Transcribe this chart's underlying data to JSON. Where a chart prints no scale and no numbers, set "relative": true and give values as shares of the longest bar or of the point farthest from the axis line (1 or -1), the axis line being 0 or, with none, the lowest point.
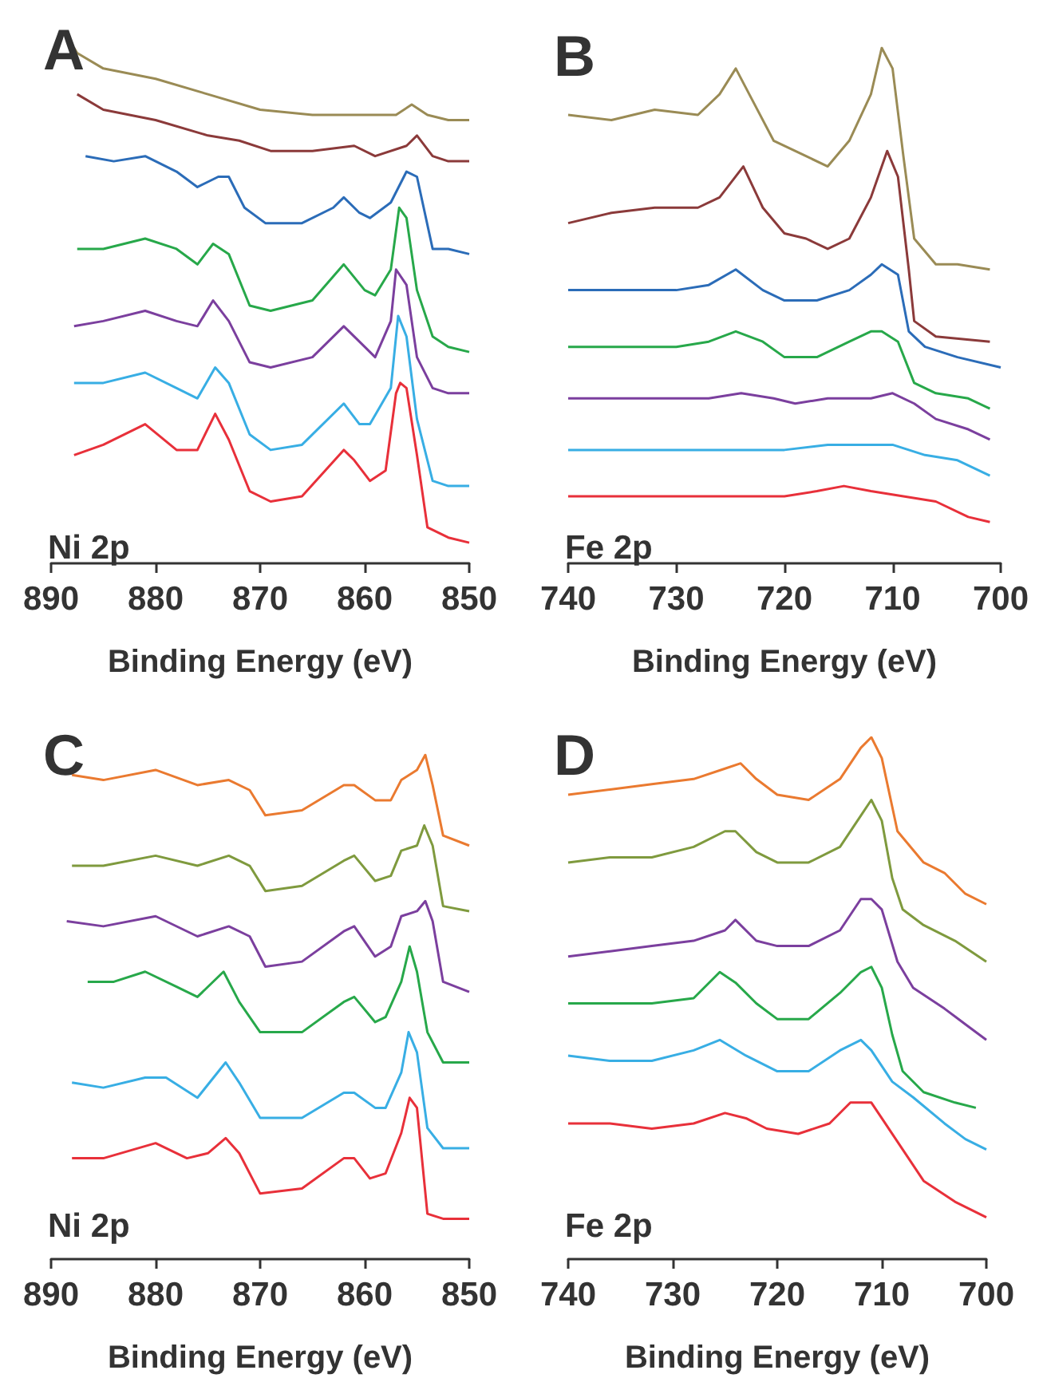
{
  "chart_data": [
    {
      "type": "line",
      "title": "A",
      "xlabel": "Binding Energy (eV)",
      "annotations": [
        "Ni 2p"
      ],
      "relative": true,
      "xlim": [
        890,
        850
      ],
      "xticks": [
        890,
        880,
        870,
        860,
        850
      ],
      "grid": false,
      "series": [
        {
          "color": "#9a8b55",
          "x": [
            887.8,
            887.5,
            885,
            880,
            875,
            870,
            865,
            860,
            857,
            855.5,
            854,
            852,
            850
          ],
          "values": [
            1.0,
            0.99,
            0.96,
            0.94,
            0.91,
            0.88,
            0.87,
            0.87,
            0.87,
            0.89,
            0.87,
            0.86,
            0.86
          ]
        },
        {
          "color": "#8b3a3a",
          "x": [
            887.5,
            885,
            880,
            875,
            872,
            869,
            865,
            861,
            859,
            856,
            855,
            853.5,
            852,
            850
          ],
          "values": [
            0.91,
            0.88,
            0.86,
            0.83,
            0.82,
            0.8,
            0.8,
            0.81,
            0.79,
            0.81,
            0.83,
            0.79,
            0.78,
            0.78
          ]
        },
        {
          "color": "#2b6cb8",
          "x": [
            886.7,
            884,
            881,
            878,
            876,
            874,
            873,
            871.5,
            869.5,
            866,
            863,
            862,
            860.5,
            859.5,
            857.5,
            856,
            855,
            853.5,
            852,
            850
          ],
          "values": [
            0.79,
            0.78,
            0.79,
            0.76,
            0.73,
            0.75,
            0.75,
            0.69,
            0.66,
            0.66,
            0.69,
            0.71,
            0.68,
            0.67,
            0.7,
            0.76,
            0.75,
            0.61,
            0.61,
            0.6
          ]
        },
        {
          "color": "#27a84a",
          "x": [
            887.5,
            885,
            881,
            878,
            876,
            874.5,
            873,
            871,
            869,
            865,
            862,
            860,
            859,
            857.5,
            856.7,
            856,
            855,
            853.5,
            852,
            850
          ],
          "values": [
            0.61,
            0.61,
            0.63,
            0.61,
            0.58,
            0.62,
            0.6,
            0.5,
            0.49,
            0.51,
            0.58,
            0.53,
            0.52,
            0.57,
            0.69,
            0.67,
            0.53,
            0.44,
            0.42,
            0.41
          ]
        },
        {
          "color": "#7b3f9e",
          "x": [
            887.8,
            885,
            881,
            878,
            876,
            874.5,
            873,
            871,
            869,
            865,
            862,
            860,
            859,
            857.5,
            857,
            856,
            855,
            853.5,
            852,
            850
          ],
          "values": [
            0.46,
            0.47,
            0.49,
            0.47,
            0.46,
            0.51,
            0.47,
            0.39,
            0.38,
            0.4,
            0.46,
            0.42,
            0.4,
            0.47,
            0.57,
            0.54,
            0.4,
            0.34,
            0.33,
            0.33
          ]
        },
        {
          "color": "#38aee4",
          "x": [
            887.8,
            885,
            881,
            878,
            876,
            874.3,
            873,
            871,
            869,
            866,
            862,
            860.5,
            859.5,
            857.5,
            856.8,
            856,
            855,
            853.5,
            852,
            850
          ],
          "values": [
            0.35,
            0.35,
            0.37,
            0.34,
            0.32,
            0.38,
            0.35,
            0.25,
            0.22,
            0.23,
            0.31,
            0.27,
            0.27,
            0.34,
            0.48,
            0.44,
            0.28,
            0.16,
            0.15,
            0.15
          ]
        },
        {
          "color": "#e8303a",
          "x": [
            887.8,
            885,
            881,
            878,
            876,
            874.3,
            873,
            871,
            869,
            866,
            862,
            861,
            859.5,
            858,
            857,
            856.6,
            856,
            855,
            854,
            852,
            850
          ],
          "values": [
            0.21,
            0.23,
            0.27,
            0.22,
            0.22,
            0.29,
            0.24,
            0.14,
            0.12,
            0.13,
            0.22,
            0.2,
            0.16,
            0.18,
            0.33,
            0.35,
            0.34,
            0.21,
            0.07,
            0.05,
            0.04
          ]
        }
      ]
    },
    {
      "type": "line",
      "title": "B",
      "xlabel": "Binding Energy (eV)",
      "annotations": [
        "Fe 2p"
      ],
      "relative": true,
      "xlim": [
        740,
        700
      ],
      "xticks": [
        740,
        730,
        720,
        710,
        700
      ],
      "grid": false,
      "series": [
        {
          "color": "#9a8b55",
          "x": [
            740,
            736,
            732,
            728,
            726,
            724.5,
            723,
            721,
            718,
            716,
            714,
            712,
            711,
            710,
            709,
            708,
            706,
            704,
            701
          ],
          "values": [
            0.87,
            0.86,
            0.88,
            0.87,
            0.91,
            0.96,
            0.9,
            0.82,
            0.79,
            0.77,
            0.82,
            0.91,
            1.0,
            0.96,
            0.79,
            0.63,
            0.58,
            0.58,
            0.57
          ]
        },
        {
          "color": "#8b3a3a",
          "x": [
            740,
            736,
            732,
            728,
            726,
            723.8,
            722,
            720,
            718,
            716,
            714,
            712,
            710.5,
            709.5,
            708.5,
            708,
            706,
            701
          ],
          "values": [
            0.66,
            0.68,
            0.69,
            0.69,
            0.71,
            0.77,
            0.69,
            0.64,
            0.63,
            0.61,
            0.63,
            0.71,
            0.8,
            0.75,
            0.57,
            0.47,
            0.44,
            0.43
          ]
        },
        {
          "color": "#2b6cb8",
          "x": [
            740,
            735,
            730,
            727,
            724.5,
            722,
            720,
            717,
            714,
            712,
            711,
            709.5,
            708.5,
            707,
            704,
            700
          ],
          "values": [
            0.53,
            0.53,
            0.53,
            0.54,
            0.57,
            0.53,
            0.51,
            0.51,
            0.53,
            0.56,
            0.58,
            0.56,
            0.45,
            0.42,
            0.4,
            0.38
          ]
        },
        {
          "color": "#27a84a",
          "x": [
            740,
            735,
            730,
            727,
            724.5,
            722,
            720,
            717,
            714,
            712,
            711,
            709.5,
            708,
            706,
            703,
            701
          ],
          "values": [
            0.42,
            0.42,
            0.42,
            0.43,
            0.45,
            0.43,
            0.4,
            0.4,
            0.43,
            0.45,
            0.45,
            0.43,
            0.35,
            0.33,
            0.32,
            0.3
          ]
        },
        {
          "color": "#7b3f9e",
          "x": [
            740,
            735,
            730,
            727,
            724,
            721,
            719,
            716,
            712,
            710,
            708,
            706,
            703,
            701
          ],
          "values": [
            0.32,
            0.32,
            0.32,
            0.32,
            0.33,
            0.32,
            0.31,
            0.32,
            0.32,
            0.33,
            0.31,
            0.28,
            0.26,
            0.24
          ]
        },
        {
          "color": "#38aee4",
          "x": [
            740,
            730,
            725,
            720,
            716,
            713,
            710,
            707,
            704,
            701
          ],
          "values": [
            0.22,
            0.22,
            0.22,
            0.22,
            0.23,
            0.23,
            0.23,
            0.21,
            0.2,
            0.17
          ]
        },
        {
          "color": "#e8303a",
          "x": [
            740,
            730,
            725,
            720,
            717,
            714.5,
            712,
            709,
            706,
            703,
            701
          ],
          "values": [
            0.13,
            0.13,
            0.13,
            0.13,
            0.14,
            0.15,
            0.14,
            0.13,
            0.12,
            0.09,
            0.08
          ]
        }
      ]
    },
    {
      "type": "line",
      "title": "C",
      "xlabel": "Binding Energy (eV)",
      "annotations": [
        "Ni 2p"
      ],
      "relative": true,
      "xlim": [
        890,
        850
      ],
      "xticks": [
        890,
        880,
        870,
        860,
        850
      ],
      "grid": false,
      "series": [
        {
          "color": "#ea7a30",
          "x": [
            888,
            885,
            880,
            876,
            873,
            871,
            869.5,
            866,
            862,
            861,
            859,
            857.5,
            856.5,
            855,
            854.2,
            853.5,
            852.5,
            850
          ],
          "values": [
            0.96,
            0.95,
            0.97,
            0.94,
            0.95,
            0.93,
            0.88,
            0.89,
            0.94,
            0.94,
            0.91,
            0.91,
            0.95,
            0.97,
            1.0,
            0.94,
            0.84,
            0.82
          ]
        },
        {
          "color": "#7f9a3e",
          "x": [
            888,
            885,
            880,
            876,
            873,
            871,
            869.5,
            866,
            862,
            861,
            859,
            857.5,
            856.5,
            855,
            854.3,
            853.5,
            852.5,
            850
          ],
          "values": [
            0.78,
            0.78,
            0.8,
            0.78,
            0.8,
            0.78,
            0.73,
            0.74,
            0.79,
            0.8,
            0.75,
            0.76,
            0.81,
            0.82,
            0.86,
            0.82,
            0.7,
            0.69
          ]
        },
        {
          "color": "#7b3f9e",
          "x": [
            888.5,
            885,
            880,
            876,
            873,
            871,
            869.5,
            866,
            862,
            861,
            859,
            857.5,
            856.5,
            855,
            854.2,
            853.5,
            852.5,
            850
          ],
          "values": [
            0.67,
            0.66,
            0.68,
            0.64,
            0.66,
            0.64,
            0.58,
            0.59,
            0.65,
            0.66,
            0.6,
            0.62,
            0.68,
            0.69,
            0.71,
            0.67,
            0.55,
            0.53
          ]
        },
        {
          "color": "#27a84a",
          "x": [
            886.5,
            884,
            881,
            878,
            876,
            873.5,
            872,
            870,
            866,
            862,
            861,
            859,
            858,
            856.5,
            855.7,
            855,
            854,
            852.5,
            850
          ],
          "values": [
            0.55,
            0.55,
            0.57,
            0.54,
            0.52,
            0.57,
            0.51,
            0.45,
            0.45,
            0.51,
            0.52,
            0.47,
            0.48,
            0.55,
            0.62,
            0.57,
            0.45,
            0.39,
            0.39
          ]
        },
        {
          "color": "#38aee4",
          "x": [
            888,
            885,
            881,
            879,
            876,
            873.3,
            872,
            870,
            866,
            862,
            861,
            859,
            858,
            856.5,
            855.8,
            855,
            854,
            852.5,
            850
          ],
          "values": [
            0.35,
            0.34,
            0.36,
            0.36,
            0.32,
            0.39,
            0.35,
            0.28,
            0.28,
            0.33,
            0.33,
            0.3,
            0.3,
            0.37,
            0.45,
            0.41,
            0.26,
            0.22,
            0.22
          ]
        },
        {
          "color": "#e8303a",
          "x": [
            888,
            885,
            880,
            877,
            875,
            873.3,
            872,
            870,
            866,
            862,
            861,
            859.5,
            858,
            856.5,
            855.7,
            855,
            854,
            852.5,
            850
          ],
          "values": [
            0.2,
            0.2,
            0.23,
            0.2,
            0.21,
            0.24,
            0.21,
            0.13,
            0.14,
            0.2,
            0.2,
            0.16,
            0.17,
            0.25,
            0.32,
            0.3,
            0.09,
            0.08,
            0.08
          ]
        }
      ]
    },
    {
      "type": "line",
      "title": "D",
      "xlabel": "Binding Energy (eV)",
      "annotations": [
        "Fe 2p"
      ],
      "relative": true,
      "xlim": [
        740,
        700
      ],
      "xticks": [
        740,
        730,
        720,
        710,
        700
      ],
      "grid": false,
      "series": [
        {
          "color": "#ea7a30",
          "x": [
            740,
            736,
            732,
            728,
            725,
            723.5,
            722,
            720,
            717,
            714,
            712,
            711,
            710,
            708.5,
            706,
            704,
            702,
            700
          ],
          "values": [
            0.89,
            0.9,
            0.91,
            0.92,
            0.94,
            0.95,
            0.92,
            0.89,
            0.88,
            0.92,
            0.98,
            1.0,
            0.96,
            0.82,
            0.76,
            0.74,
            0.7,
            0.68
          ]
        },
        {
          "color": "#7f9a3e",
          "x": [
            740,
            736,
            732,
            728,
            725,
            724,
            722,
            720,
            717,
            714,
            712,
            711,
            710,
            709,
            708,
            706,
            703,
            700
          ],
          "values": [
            0.76,
            0.77,
            0.77,
            0.79,
            0.82,
            0.82,
            0.78,
            0.76,
            0.76,
            0.79,
            0.85,
            0.88,
            0.84,
            0.73,
            0.67,
            0.64,
            0.61,
            0.57
          ]
        },
        {
          "color": "#7b3f9e",
          "x": [
            740,
            736,
            732,
            728,
            725,
            724,
            722,
            720,
            717,
            714,
            712,
            711,
            710,
            708.5,
            707,
            704,
            702,
            700
          ],
          "values": [
            0.58,
            0.59,
            0.6,
            0.61,
            0.63,
            0.65,
            0.61,
            0.6,
            0.6,
            0.63,
            0.69,
            0.69,
            0.67,
            0.57,
            0.52,
            0.48,
            0.45,
            0.42
          ]
        },
        {
          "color": "#27a84a",
          "x": [
            740,
            736,
            732,
            728,
            725.5,
            724,
            722,
            720,
            717,
            714,
            712,
            711,
            710,
            709,
            708,
            706,
            703,
            701
          ],
          "values": [
            0.49,
            0.49,
            0.49,
            0.5,
            0.55,
            0.53,
            0.49,
            0.46,
            0.46,
            0.51,
            0.55,
            0.56,
            0.52,
            0.43,
            0.36,
            0.32,
            0.3,
            0.29
          ]
        },
        {
          "color": "#38aee4",
          "x": [
            740,
            736,
            732,
            728,
            725.5,
            723,
            720,
            717,
            714,
            712,
            711,
            709,
            707,
            704,
            702,
            700
          ],
          "values": [
            0.39,
            0.38,
            0.38,
            0.4,
            0.42,
            0.39,
            0.36,
            0.36,
            0.4,
            0.42,
            0.4,
            0.34,
            0.31,
            0.26,
            0.23,
            0.21
          ]
        },
        {
          "color": "#e8303a",
          "x": [
            740,
            736,
            732,
            728,
            725,
            723,
            721,
            718,
            715,
            713,
            711,
            710,
            708,
            706,
            703,
            700
          ],
          "values": [
            0.26,
            0.26,
            0.25,
            0.26,
            0.28,
            0.27,
            0.25,
            0.24,
            0.26,
            0.3,
            0.3,
            0.27,
            0.21,
            0.15,
            0.11,
            0.08
          ]
        }
      ]
    }
  ]
}
